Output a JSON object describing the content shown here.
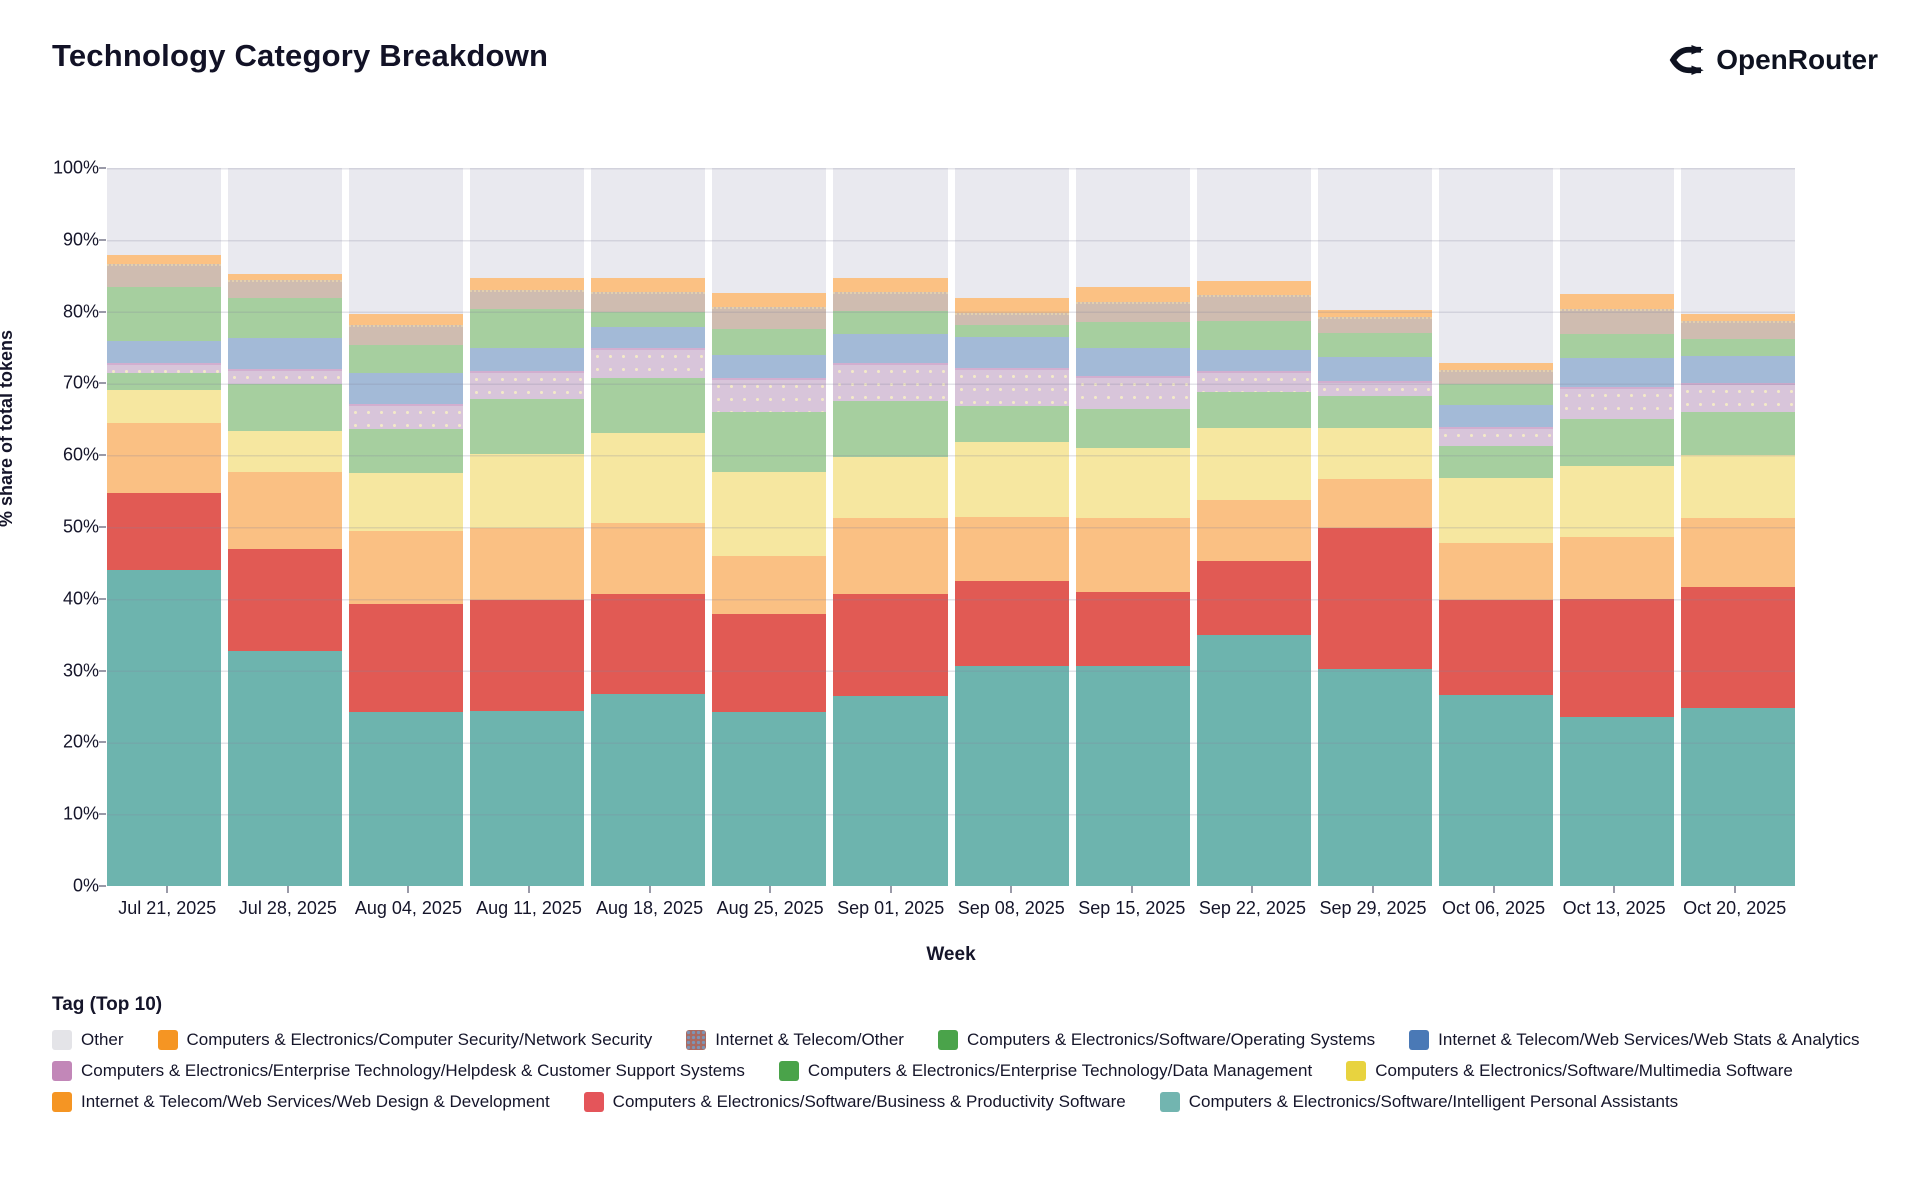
{
  "header": {
    "title": "Technology Category Breakdown",
    "brand": "OpenRouter"
  },
  "axes": {
    "ylabel": "% share of total tokens",
    "xlabel": "Week",
    "yticks": [
      "100%",
      "90%",
      "80%",
      "70%",
      "60%",
      "50%",
      "40%",
      "30%",
      "20%",
      "10%",
      "0%"
    ]
  },
  "legend_title": "Tag (Top 10)",
  "chart_data": {
    "type": "bar",
    "stacked": true,
    "normalized": true,
    "ylim": [
      0,
      100
    ],
    "grid": true,
    "legend_position": "bottom",
    "x": [
      "Jul 21, 2025",
      "Jul 28, 2025",
      "Aug 04, 2025",
      "Aug 11, 2025",
      "Aug 18, 2025",
      "Aug 25, 2025",
      "Sep 01, 2025",
      "Sep 08, 2025",
      "Sep 15, 2025",
      "Sep 22, 2025",
      "Sep 29, 2025",
      "Oct 06, 2025",
      "Oct 13, 2025",
      "Oct 20, 2025"
    ],
    "series": [
      {
        "key": "ipa",
        "name": "Computers & Electronics/Software/Intelligent Personal Assistants",
        "bar_color": "#6db4ae",
        "legend_color": "#72b5b0",
        "values": [
          44.0,
          32.8,
          24.2,
          24.4,
          26.7,
          24.3,
          26.4,
          30.7,
          30.7,
          35.0,
          30.2,
          26.6,
          23.6,
          24.8
        ]
      },
      {
        "key": "bps",
        "name": "Computers & Electronics/Software/Business & Productivity Software",
        "bar_color": "#e15a54",
        "legend_color": "#e4555a",
        "values": [
          10.7,
          14.2,
          15.1,
          15.4,
          14.0,
          13.6,
          14.3,
          11.8,
          10.2,
          10.2,
          19.6,
          13.2,
          16.4,
          16.9
        ]
      },
      {
        "key": "wdd",
        "name": "Internet & Telecom/Web Services/Web Design & Development",
        "bar_color": "#fac083",
        "legend_color": "#f59523",
        "values": [
          9.8,
          10.6,
          10.2,
          10.0,
          9.9,
          8.0,
          10.5,
          8.9,
          10.3,
          8.6,
          6.9,
          8.0,
          8.6,
          9.5
        ]
      },
      {
        "key": "mms",
        "name": "Computers & Electronics/Software/Multimedia Software",
        "bar_color": "#f6e7a0",
        "legend_color": "#e8d33f",
        "values": [
          4.6,
          5.8,
          8.0,
          10.4,
          12.5,
          11.8,
          8.5,
          10.5,
          9.8,
          10.0,
          7.1,
          9.0,
          9.9,
          8.8
        ]
      },
      {
        "key": "dm",
        "name": "Computers & Electronics/Enterprise Technology/Data Management",
        "bar_color": "#a6cf9f",
        "legend_color": "#4aa34a",
        "values": [
          2.3,
          6.5,
          6.2,
          7.6,
          7.6,
          8.3,
          7.8,
          4.9,
          5.5,
          5.0,
          4.5,
          4.5,
          6.5,
          6.0
        ]
      },
      {
        "key": "hcs",
        "name": "Computers & Electronics/Enterprise Technology/Helpdesk & Customer Support Systems",
        "bar_color": "#d8c5da",
        "legend_color": "#c287b8",
        "pattern": "dots",
        "values": [
          1.5,
          2.1,
          3.4,
          3.9,
          4.2,
          4.7,
          5.4,
          5.3,
          4.5,
          2.9,
          2.1,
          2.7,
          4.5,
          4.0
        ]
      },
      {
        "key": "wsa",
        "name": "Internet & Telecom/Web Services/Web Stats & Analytics",
        "bar_color": "#a3bad7",
        "legend_color": "#4a79b6",
        "values": [
          3.0,
          4.4,
          4.3,
          3.2,
          2.9,
          3.2,
          4.0,
          4.4,
          4.0,
          3.0,
          3.3,
          3.0,
          4.0,
          3.8
        ]
      },
      {
        "key": "os",
        "name": "Computers & Electronics/Software/Operating Systems",
        "bar_color": "#a6cf9f",
        "legend_color": "#4aa34a",
        "values": [
          7.5,
          5.5,
          4.0,
          5.4,
          2.2,
          3.7,
          3.2,
          1.7,
          3.5,
          4.0,
          3.3,
          2.9,
          3.4,
          2.4
        ]
      },
      {
        "key": "ito",
        "name": "Internet & Telecom/Other",
        "bar_color": "#cfbcb0",
        "legend_color": "#a96a62",
        "pattern": "legend-dots",
        "values": [
          3.3,
          2.5,
          2.7,
          2.7,
          2.7,
          3.1,
          2.6,
          1.6,
          2.9,
          3.6,
          2.3,
          2.0,
          3.5,
          2.5
        ]
      },
      {
        "key": "ns",
        "name": "Computers & Electronics/Computer Security/Network Security",
        "bar_color": "#fbc183",
        "legend_color": "#f59523",
        "values": [
          1.2,
          0.9,
          1.6,
          1.7,
          2.0,
          1.9,
          2.0,
          2.1,
          2.0,
          2.0,
          1.0,
          1.0,
          2.0,
          1.0
        ]
      },
      {
        "key": "other",
        "name": "Other",
        "bar_color": "#e9e9ef",
        "legend_color": "#e4e4e8",
        "values": [
          12.1,
          14.7,
          20.3,
          15.3,
          15.3,
          17.4,
          15.3,
          18.1,
          16.6,
          15.7,
          19.7,
          27.1,
          17.6,
          20.3
        ]
      }
    ],
    "legend_order": [
      "other",
      "ns",
      "ito",
      "os",
      "wsa",
      "hcs",
      "dm",
      "mms",
      "wdd",
      "bps",
      "ipa"
    ]
  }
}
